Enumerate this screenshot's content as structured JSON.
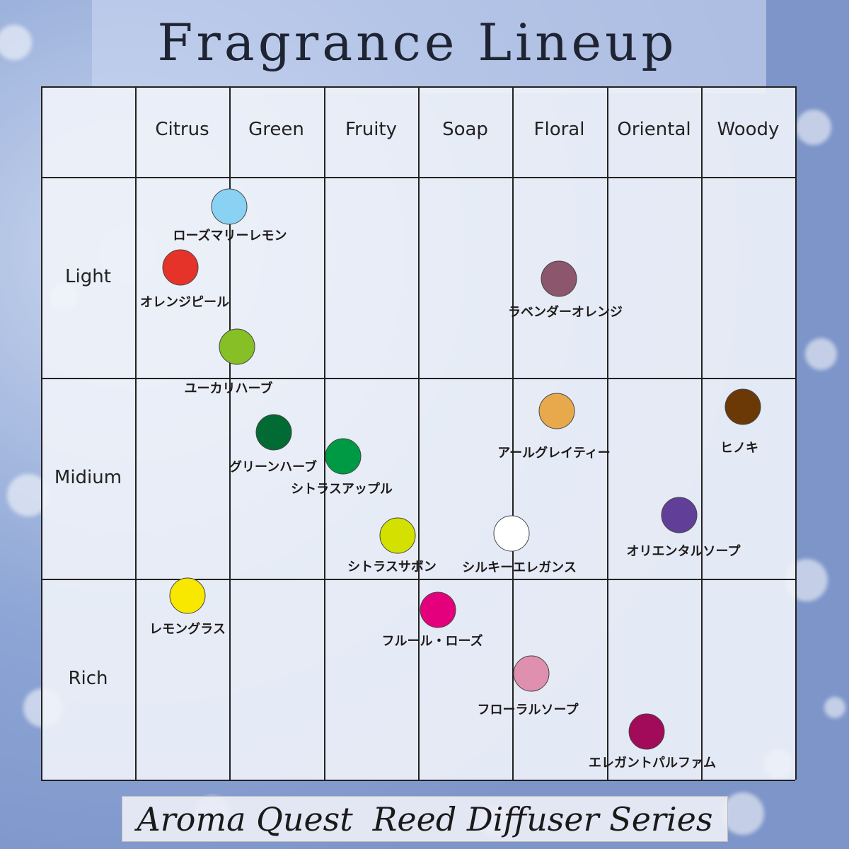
{
  "title": "Fragrance Lineup",
  "columns": [
    "Citrus",
    "Green",
    "Fruity",
    "Soap",
    "Floral",
    "Oriental",
    "Woody"
  ],
  "rows": [
    "Light",
    "Midium",
    "Rich"
  ],
  "items": [
    {
      "name": "ローズマリーレモン",
      "color": "#8ad2f3"
    },
    {
      "name": "オレンジピール",
      "color": "#e63329"
    },
    {
      "name": "ユーカリハーブ",
      "color": "#86bf26"
    },
    {
      "name": "ラベンダーオレンジ",
      "color": "#8c566c"
    },
    {
      "name": "グリーンハーブ",
      "color": "#016b33"
    },
    {
      "name": "シトラスアップル",
      "color": "#009a44"
    },
    {
      "name": "アールグレイティー",
      "color": "#e8a94c"
    },
    {
      "name": "ヒノキ",
      "color": "#6a3906"
    },
    {
      "name": "オリエンタルソープ",
      "color": "#613f98"
    },
    {
      "name": "シトラスサボン",
      "color": "#d4e000"
    },
    {
      "name": "シルキーエレガンス",
      "color": "#ffffff"
    },
    {
      "name": "レモングラス",
      "color": "#f8e800"
    },
    {
      "name": "フルール・ローズ",
      "color": "#e4007d"
    },
    {
      "name": "フローラルソープ",
      "color": "#de90ae"
    },
    {
      "name": "エレガントパルファム",
      "color": "#a20b5a"
    }
  ],
  "footer": {
    "brand": "Aroma Quest",
    "series": "Reed Diffuser Series"
  }
}
